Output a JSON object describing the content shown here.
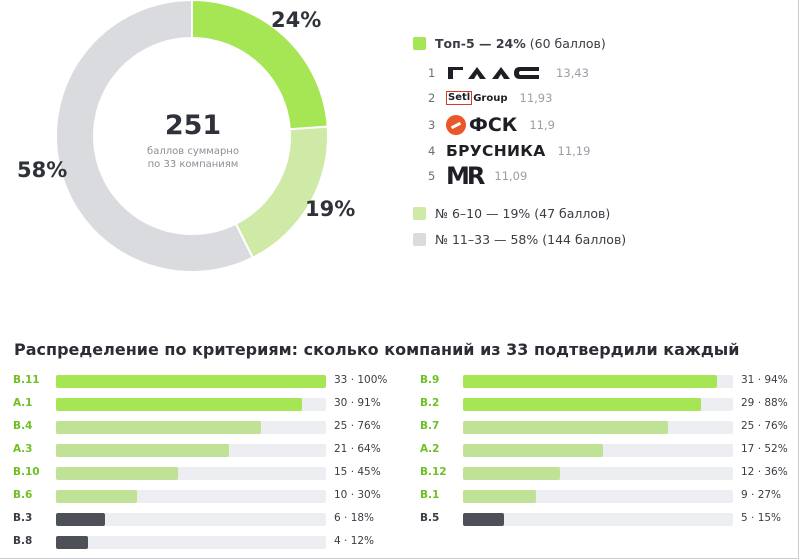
{
  "colors": {
    "top5": "#a6e553",
    "mid": "#cfe9a7",
    "rest": "#d9dbde",
    "bar_top": "#a6e553",
    "bar_mid": "#bfe296",
    "bar_low": "#4d5157",
    "track": "#eceef1",
    "code_green": "#6fbf25",
    "code_dark": "#3a3d44"
  },
  "chart_data": [
    {
      "type": "pie",
      "donut": true,
      "total_value": "251",
      "total_caption_1": "баллов суммарно",
      "total_caption_2": "по 33 компаниям",
      "slices": [
        {
          "label": "Топ-5",
          "value": 60,
          "percent_label": "24%",
          "color_key": "top5"
        },
        {
          "label": "№ 6–10",
          "value": 47,
          "percent_label": "19%",
          "color_key": "mid"
        },
        {
          "label": "№ 11–33",
          "value": 144,
          "percent_label": "58%",
          "color_key": "rest"
        }
      ],
      "legend": [
        {
          "strong": "Топ-5 — 24%",
          "extra": "(60 баллов)",
          "color_key": "top5"
        },
        {
          "strong": "",
          "extra": "№ 6–10 — 19% (47 баллов)",
          "color_key": "mid"
        },
        {
          "strong": "",
          "extra": "№ 11–33 — 58% (144 баллов)",
          "color_key": "rest"
        }
      ],
      "top_companies": [
        {
          "rank": "1",
          "logo": "ГАЛС",
          "score": "13,43"
        },
        {
          "rank": "2",
          "logo": "Setl Group",
          "score": "11,93"
        },
        {
          "rank": "3",
          "logo": "ФСК",
          "score": "11,9"
        },
        {
          "rank": "4",
          "logo": "БРУСНИКА",
          "score": "11,19"
        },
        {
          "rank": "5",
          "logo": "MR",
          "score": "11,09"
        }
      ]
    },
    {
      "type": "bar",
      "orientation": "horizontal",
      "title": "Распределение по критериям: сколько компаний из 33 подтвердили каждый",
      "xlim": [
        0,
        100
      ],
      "columns": [
        [
          {
            "code": "В.11",
            "count": 33,
            "percent": 100,
            "label": "33 · 100%",
            "tier": "top"
          },
          {
            "code": "А.1",
            "count": 30,
            "percent": 91,
            "label": "30 · 91%",
            "tier": "top"
          },
          {
            "code": "В.4",
            "count": 25,
            "percent": 76,
            "label": "25 · 76%",
            "tier": "mid"
          },
          {
            "code": "А.3",
            "count": 21,
            "percent": 64,
            "label": "21 · 64%",
            "tier": "mid"
          },
          {
            "code": "В.10",
            "count": 15,
            "percent": 45,
            "label": "15 · 45%",
            "tier": "mid"
          },
          {
            "code": "В.6",
            "count": 10,
            "percent": 30,
            "label": "10 · 30%",
            "tier": "mid"
          },
          {
            "code": "В.3",
            "count": 6,
            "percent": 18,
            "label": "6 · 18%",
            "tier": "low"
          },
          {
            "code": "В.8",
            "count": 4,
            "percent": 12,
            "label": "4 · 12%",
            "tier": "low"
          }
        ],
        [
          {
            "code": "В.9",
            "count": 31,
            "percent": 94,
            "label": "31 · 94%",
            "tier": "top"
          },
          {
            "code": "В.2",
            "count": 29,
            "percent": 88,
            "label": "29 · 88%",
            "tier": "top"
          },
          {
            "code": "В.7",
            "count": 25,
            "percent": 76,
            "label": "25 · 76%",
            "tier": "mid"
          },
          {
            "code": "А.2",
            "count": 17,
            "percent": 52,
            "label": "17 · 52%",
            "tier": "mid"
          },
          {
            "code": "В.12",
            "count": 12,
            "percent": 36,
            "label": "12 · 36%",
            "tier": "mid"
          },
          {
            "code": "В.1",
            "count": 9,
            "percent": 27,
            "label": "9 · 27%",
            "tier": "mid"
          },
          {
            "code": "В.5",
            "count": 5,
            "percent": 15,
            "label": "5 · 15%",
            "tier": "low"
          }
        ]
      ]
    }
  ]
}
